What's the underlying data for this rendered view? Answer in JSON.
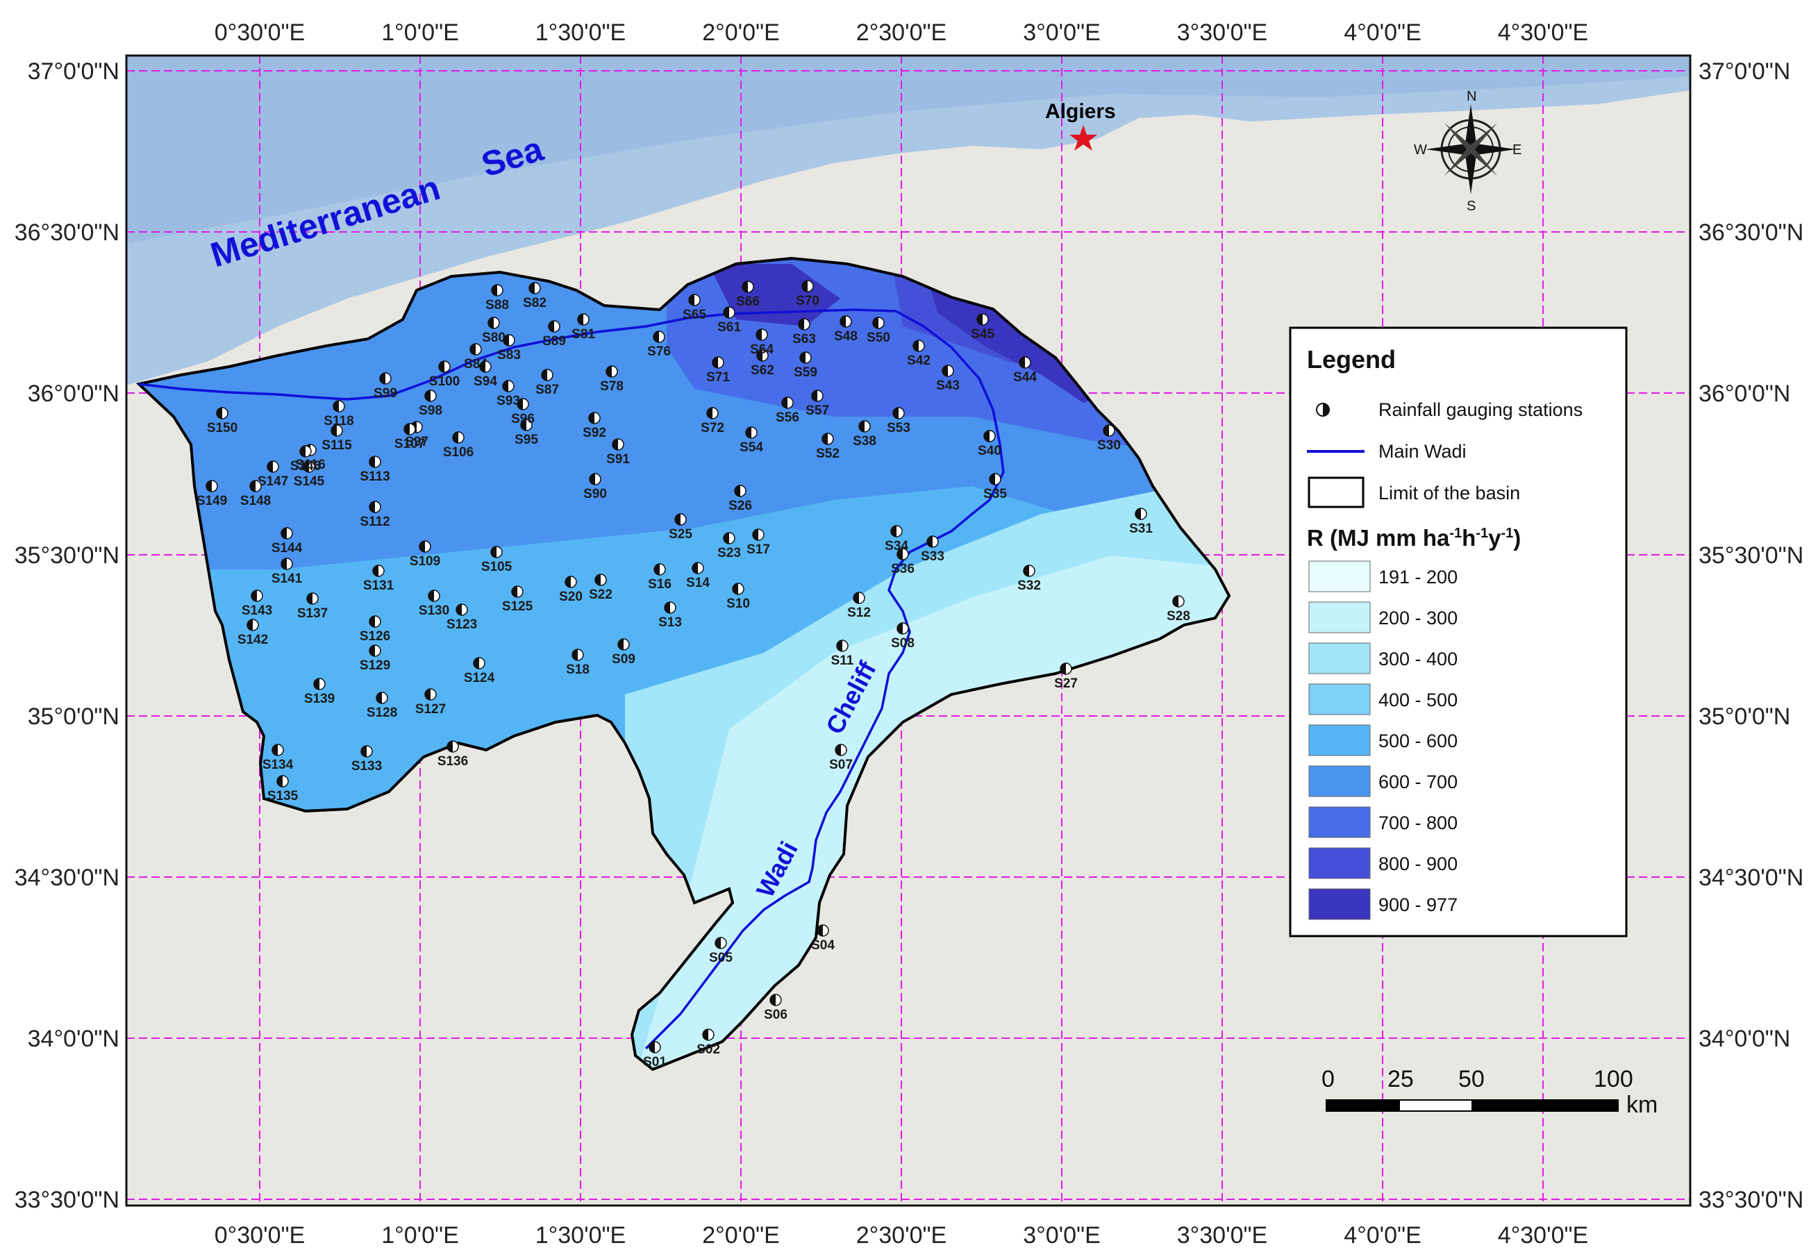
{
  "colors": {
    "sea": "#aac7e6",
    "land": "#e9e7e1",
    "grid": "#e21be8",
    "wadi": "#1010d8",
    "star": "#e0151b",
    "outline": "#000000"
  },
  "coords": {
    "top": [
      "0°30'0\"E",
      "1°0'0\"E",
      "1°30'0\"E",
      "2°0'0\"E",
      "2°30'0\"E",
      "3°0'0\"E",
      "3°30'0\"E",
      "4°0'0\"E",
      "4°30'0\"E"
    ],
    "bottom": [
      "0°30'0\"E",
      "1°0'0\"E",
      "1°30'0\"E",
      "2°0'0\"E",
      "2°30'0\"E",
      "3°0'0\"E",
      "3°30'0\"E",
      "4°0'0\"E",
      "4°30'0\"E"
    ],
    "left": [
      "37°0'0\"N",
      "36°30'0\"N",
      "36°0'0\"N",
      "35°30'0\"N",
      "35°0'0\"N",
      "34°30'0\"N",
      "34°0'0\"N",
      "33°30'0\"N"
    ],
    "right": [
      "37°0'0\"N",
      "36°30'0\"N",
      "36°0'0\"N",
      "35°30'0\"N",
      "35°0'0\"N",
      "34°30'0\"N",
      "34°0'0\"N",
      "33°30'0\"N"
    ]
  },
  "labels": {
    "sea_word1": "Mediterranean",
    "sea_word2": "Sea",
    "city": "Algiers",
    "wadi_word1": "Wadi",
    "wadi_word2": "Cheliff"
  },
  "compass": {
    "n": "N",
    "s": "S",
    "e": "E",
    "w": "W"
  },
  "legend": {
    "title": "Legend",
    "stations_label": "Rainfall gauging stations",
    "wadi_label": "Main Wadi",
    "basin_label": "Limit of the basin",
    "r_title_main": "R (MJ mm ha",
    "r_title_sup1": "-1",
    "r_title_mid1": "h",
    "r_title_sup2": "-1",
    "r_title_mid2": "y",
    "r_title_sup3": "-1",
    "r_title_end": ")",
    "classes": [
      {
        "label": "191 - 200",
        "color": "#e8fdfe"
      },
      {
        "label": "200 - 300",
        "color": "#c6f3fb"
      },
      {
        "label": "300 - 400",
        "color": "#a3e6fa"
      },
      {
        "label": "400 - 500",
        "color": "#7fd0f7"
      },
      {
        "label": "500 - 600",
        "color": "#55b5f4"
      },
      {
        "label": "600 - 700",
        "color": "#4a93ef"
      },
      {
        "label": "700 - 800",
        "color": "#476ee8"
      },
      {
        "label": "800 - 900",
        "color": "#4550d8"
      },
      {
        "label": "900 - 977",
        "color": "#3a35be"
      }
    ]
  },
  "scale": {
    "ticks": [
      "0",
      "25",
      "50",
      "100"
    ],
    "unit": "km"
  },
  "stations": [
    "S01",
    "S02",
    "S04",
    "S05",
    "S06",
    "S07",
    "S08",
    "S09",
    "S10",
    "S11",
    "S12",
    "S13",
    "S14",
    "S16",
    "S17",
    "S18",
    "S20",
    "S22",
    "S23",
    "S25",
    "S26",
    "S27",
    "S28",
    "S30",
    "S31",
    "S32",
    "S33",
    "S34",
    "S35",
    "S36",
    "S38",
    "S40",
    "S42",
    "S43",
    "S44",
    "S45",
    "S48",
    "S50",
    "S52",
    "S53",
    "S54",
    "S56",
    "S57",
    "S59",
    "S61",
    "S62",
    "S63",
    "S64",
    "S65",
    "S66",
    "S70",
    "S71",
    "S72",
    "S76",
    "S78",
    "S80",
    "S81",
    "S82",
    "S83",
    "S84",
    "S87",
    "S88",
    "S89",
    "S90",
    "S91",
    "S92",
    "S93",
    "S94",
    "S95",
    "S96",
    "S97",
    "S98",
    "S99",
    "S100",
    "S105",
    "S106",
    "S107",
    "S109",
    "S112",
    "S113",
    "S115",
    "S116",
    "S118",
    "S123",
    "S124",
    "S125",
    "S126",
    "S127",
    "S128",
    "S129",
    "S130",
    "S131",
    "S133",
    "S134",
    "S135",
    "S136",
    "S137",
    "S139",
    "S141",
    "S142",
    "S143",
    "S144",
    "S145",
    "S146",
    "S147",
    "S148",
    "S149",
    "S150"
  ]
}
